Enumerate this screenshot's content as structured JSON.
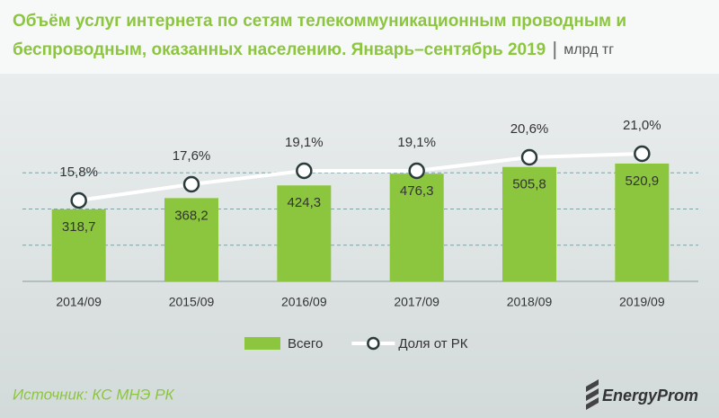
{
  "chart_data": {
    "type": "bar",
    "title_lines": [
      "Объём услуг интернета по сетям телекоммуникационным проводным и",
      "беспроводным, оказанных населению. Январь–сентябрь 2019"
    ],
    "unit": "млрд тг",
    "categories": [
      "2014/09",
      "2015/09",
      "2016/09",
      "2017/09",
      "2018/09",
      "2019/09"
    ],
    "series": [
      {
        "name": "Всего",
        "type": "bar",
        "color": "#8cc63e",
        "values": [
          318.7,
          368.2,
          424.3,
          476.3,
          505.8,
          520.9
        ],
        "value_labels": [
          "318,7",
          "368,2",
          "424,3",
          "476,3",
          "505,8",
          "520,9"
        ]
      },
      {
        "name": "Доля от РК",
        "type": "line",
        "axis": "y2",
        "color": "#ffffff",
        "values": [
          15.8,
          17.6,
          19.1,
          19.1,
          20.6,
          21.0
        ],
        "value_labels": [
          "15,8%",
          "17,6%",
          "19,1%",
          "19,1%",
          "20,6%",
          "21,0%"
        ]
      }
    ],
    "ylim": [
      0,
      640
    ],
    "yticks": [
      0,
      160,
      320,
      480
    ],
    "grid": true,
    "y2lim": [
      6.8,
      22.9
    ],
    "legend": "bottom",
    "source": "Источник: КС МНЭ РК",
    "logo": "EnergyProm"
  }
}
